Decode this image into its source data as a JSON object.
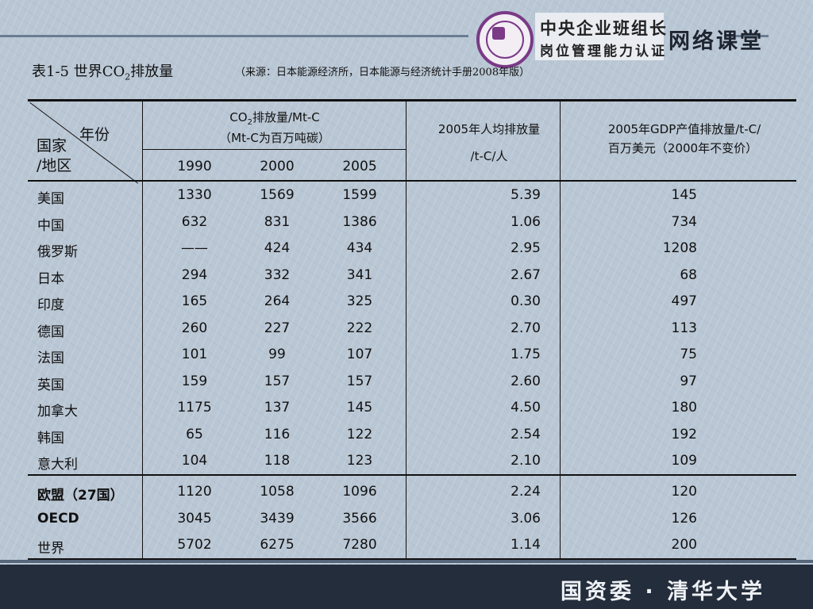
{
  "header": {
    "brand_line1": "中央企业班组长",
    "brand_line2": "岗位管理能力认证",
    "brand_side": "网络课堂",
    "emblem_icon": "university-seal-icon"
  },
  "table_title": {
    "prefix": "表1-5  世界CO",
    "subscript": "2",
    "suffix": "排放量",
    "source": "（来源：日本能源经济所，日本能源与经济统计手册2008年版）"
  },
  "columns": {
    "corner_year": "年份",
    "corner_region_1": "国家",
    "corner_region_2": "/地区",
    "co2_head_1a": "CO",
    "co2_head_1sub": "2",
    "co2_head_1b": "排放量/Mt-C",
    "co2_head_2": "（Mt-C为百万吨碳）",
    "years": [
      "1990",
      "2000",
      "2005"
    ],
    "per_capita_1": "2005年人均排放量",
    "per_capita_2": "/t-C/人",
    "gdp_1": "2005年GDP产值排放量/t-C/",
    "gdp_2": "百万美元（2000年不变价）"
  },
  "rows": [
    {
      "name": "美国",
      "y1990": "1330",
      "y2000": "1569",
      "y2005": "1599",
      "per_capita": "5.39",
      "gdp": "145"
    },
    {
      "name": "中国",
      "y1990": "632",
      "y2000": "831",
      "y2005": "1386",
      "per_capita": "1.06",
      "gdp": "734"
    },
    {
      "name": "俄罗斯",
      "y1990": "——",
      "y2000": "424",
      "y2005": "434",
      "per_capita": "2.95",
      "gdp": "1208"
    },
    {
      "name": "日本",
      "y1990": "294",
      "y2000": "332",
      "y2005": "341",
      "per_capita": "2.67",
      "gdp": "68"
    },
    {
      "name": "印度",
      "y1990": "165",
      "y2000": "264",
      "y2005": "325",
      "per_capita": "0.30",
      "gdp": "497"
    },
    {
      "name": "德国",
      "y1990": "260",
      "y2000": "227",
      "y2005": "222",
      "per_capita": "2.70",
      "gdp": "113"
    },
    {
      "name": "法国",
      "y1990": "101",
      "y2000": "99",
      "y2005": "107",
      "per_capita": "1.75",
      "gdp": "75"
    },
    {
      "name": "英国",
      "y1990": "159",
      "y2000": "157",
      "y2005": "157",
      "per_capita": "2.60",
      "gdp": "97"
    },
    {
      "name": "加拿大",
      "y1990": "1175",
      "y2000": "137",
      "y2005": "145",
      "per_capita": "4.50",
      "gdp": "180"
    },
    {
      "name": "韩国",
      "y1990": "65",
      "y2000": "116",
      "y2005": "122",
      "per_capita": "2.54",
      "gdp": "192"
    },
    {
      "name": "意大利",
      "y1990": "104",
      "y2000": "118",
      "y2005": "123",
      "per_capita": "2.10",
      "gdp": "109"
    }
  ],
  "summary_rows": [
    {
      "name": "欧盟（27国）",
      "y1990": "1120",
      "y2000": "1058",
      "y2005": "1096",
      "per_capita": "2.24",
      "gdp": "120"
    },
    {
      "name": "OECD",
      "y1990": "3045",
      "y2000": "3439",
      "y2005": "3566",
      "per_capita": "3.06",
      "gdp": "126"
    },
    {
      "name": "世界",
      "y1990": "5702",
      "y2000": "6275",
      "y2005": "7280",
      "per_capita": "1.14",
      "gdp": "200"
    }
  ],
  "footer": {
    "text": "国资委 · 清华大学"
  }
}
